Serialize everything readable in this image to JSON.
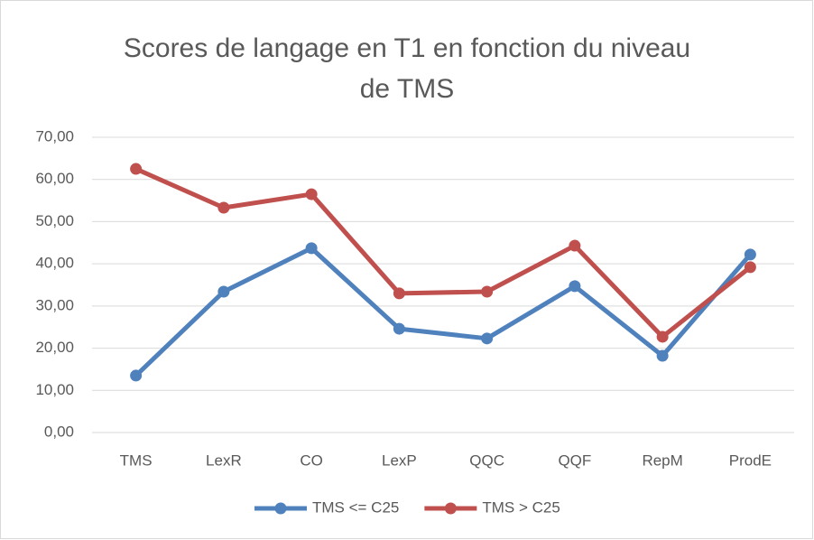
{
  "chart_data": {
    "type": "line",
    "title": [
      "Scores de langage en T1 en fonction du niveau",
      "de TMS"
    ],
    "categories": [
      "TMS",
      "LexR",
      "CO",
      "LexP",
      "QQC",
      "QQF",
      "RepM",
      "ProdE"
    ],
    "series": [
      {
        "name": "TMS <= C25",
        "color": "#4f81bd",
        "values": [
          13.5,
          33.4,
          43.7,
          24.6,
          22.3,
          34.7,
          18.2,
          42.2
        ]
      },
      {
        "name": "TMS > C25",
        "color": "#c0504d",
        "values": [
          62.5,
          53.3,
          56.5,
          33.0,
          33.4,
          44.3,
          22.7,
          39.2
        ]
      }
    ],
    "ylim": [
      0,
      70
    ],
    "yticks": [
      {
        "value": 0,
        "label": "0,00"
      },
      {
        "value": 10,
        "label": "10,00"
      },
      {
        "value": 20,
        "label": "20,00"
      },
      {
        "value": 30,
        "label": "30,00"
      },
      {
        "value": 40,
        "label": "40,00"
      },
      {
        "value": 50,
        "label": "50,00"
      },
      {
        "value": 60,
        "label": "60,00"
      },
      {
        "value": 70,
        "label": "70,00"
      }
    ],
    "grid": true,
    "legend": "bottom"
  }
}
